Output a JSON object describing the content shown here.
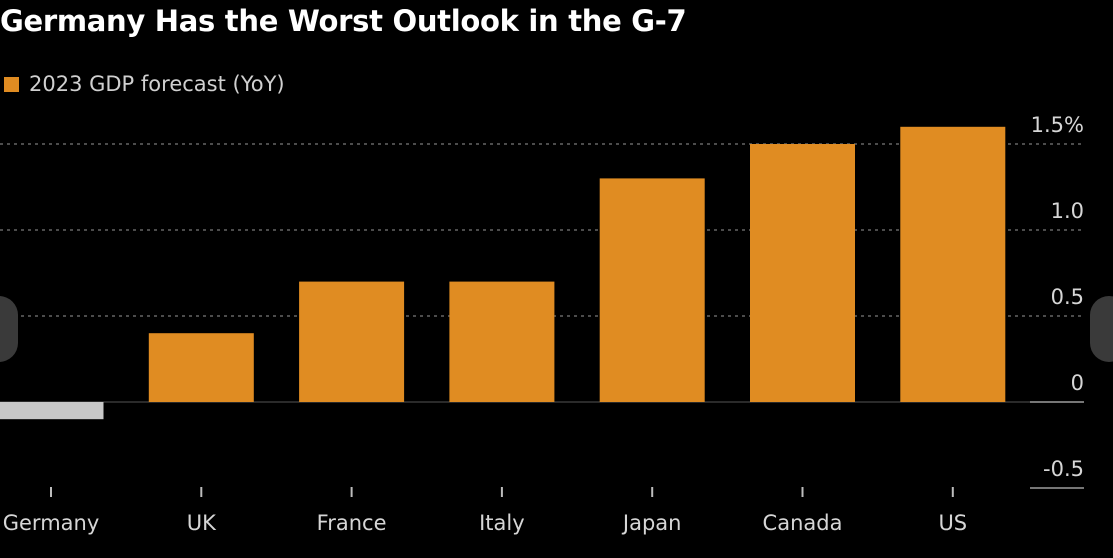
{
  "chart_data": {
    "type": "bar",
    "title": "Germany Has the Worst Outlook in the G-7",
    "legend": {
      "label": "2023 GDP forecast (YoY)",
      "placement": "top-left"
    },
    "categories": [
      "Germany",
      "UK",
      "France",
      "Italy",
      "Japan",
      "Canada",
      "US"
    ],
    "series": [
      {
        "name": "2023 GDP forecast (YoY)",
        "values": [
          -0.1,
          0.4,
          0.7,
          0.7,
          1.3,
          1.5,
          1.6
        ]
      }
    ],
    "bar_colors": [
      "#c8c8c8",
      "#e08c22",
      "#e08c22",
      "#e08c22",
      "#e08c22",
      "#e08c22",
      "#e08c22"
    ],
    "accent_color": "#e08c22",
    "ylim": [
      -0.5,
      1.5
    ],
    "yticks": [
      1.5,
      1.0,
      0.5,
      0,
      -0.5
    ],
    "ytick_labels": [
      "1.5%",
      "1.0",
      "0.5",
      "0",
      "-0.5"
    ],
    "y_axis_side": "right",
    "grid": true
  }
}
